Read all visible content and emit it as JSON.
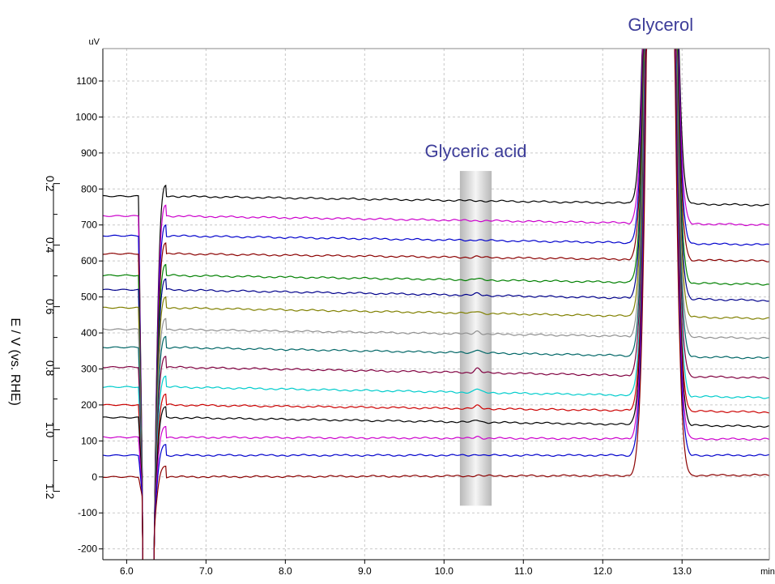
{
  "chart_data": {
    "type": "line",
    "title": "",
    "y_unit": "uV",
    "x_unit": "min",
    "xlim": [
      5.7,
      14.1
    ],
    "ylim": [
      -230,
      1190
    ],
    "x_ticks": [
      6.0,
      7.0,
      8.0,
      9.0,
      10.0,
      11.0,
      12.0,
      13.0
    ],
    "x_tick_labels": [
      "6.0",
      "7.0",
      "8.0",
      "9.0",
      "10.0",
      "11.0",
      "12.0",
      "13.0"
    ],
    "y_ticks": [
      -200,
      -100,
      0,
      100,
      200,
      300,
      400,
      500,
      600,
      700,
      800,
      900,
      1000,
      1100
    ],
    "y_tick_labels": [
      "-200",
      "-100",
      "0",
      "100",
      "200",
      "300",
      "400",
      "500",
      "600",
      "700",
      "800",
      "900",
      "1000",
      "1100"
    ],
    "grid": true,
    "secondary_axis": {
      "label": "E / V (vs. RHE)",
      "ticks": [
        "0.2",
        "0.4",
        "0.6",
        "0.8",
        "1.0",
        "1.2"
      ],
      "tick_values": [
        0.2,
        0.4,
        0.6,
        0.8,
        1.0,
        1.2
      ],
      "range_uV": [
        815,
        -40
      ]
    },
    "annotations": [
      {
        "text": "Glyceric acid",
        "x_range": [
          10.2,
          10.6
        ],
        "y_range": [
          -80,
          850
        ],
        "highlight": "gray-band"
      },
      {
        "text": "Glycerol",
        "x": 12.73
      }
    ],
    "series": [
      {
        "baseline_left": 780,
        "baseline_right": 755,
        "glyceric_peak": 0,
        "color": "#000000"
      },
      {
        "baseline_left": 725,
        "baseline_right": 700,
        "glyceric_peak": 0,
        "color": "#cc00cc"
      },
      {
        "baseline_left": 670,
        "baseline_right": 645,
        "glyceric_peak": 2,
        "color": "#0000cc"
      },
      {
        "baseline_left": 620,
        "baseline_right": 600,
        "glyceric_peak": 3,
        "color": "#8b0000"
      },
      {
        "baseline_left": 560,
        "baseline_right": 535,
        "glyceric_peak": 4,
        "color": "#008000"
      },
      {
        "baseline_left": 520,
        "baseline_right": 490,
        "glyceric_peak": 5,
        "color": "#00008b"
      },
      {
        "baseline_left": 470,
        "baseline_right": 440,
        "glyceric_peak": 6,
        "color": "#808000"
      },
      {
        "baseline_left": 410,
        "baseline_right": 385,
        "glyceric_peak": 8,
        "color": "#909090"
      },
      {
        "baseline_left": 360,
        "baseline_right": 330,
        "glyceric_peak": 10,
        "color": "#006666"
      },
      {
        "baseline_left": 305,
        "baseline_right": 275,
        "glyceric_peak": 12,
        "color": "#800040"
      },
      {
        "baseline_left": 250,
        "baseline_right": 220,
        "glyceric_peak": 10,
        "color": "#00cccc"
      },
      {
        "baseline_left": 200,
        "baseline_right": 180,
        "glyceric_peak": 8,
        "color": "#cc0000"
      },
      {
        "baseline_left": 165,
        "baseline_right": 140,
        "glyceric_peak": 6,
        "color": "#000000"
      },
      {
        "baseline_left": 110,
        "baseline_right": 105,
        "glyceric_peak": 5,
        "color": "#cc00cc"
      },
      {
        "baseline_left": 60,
        "baseline_right": 60,
        "glyceric_peak": 3,
        "color": "#0000cc"
      },
      {
        "baseline_left": 0,
        "baseline_right": 5,
        "glyceric_peak": 2,
        "color": "#8b0000"
      }
    ]
  }
}
